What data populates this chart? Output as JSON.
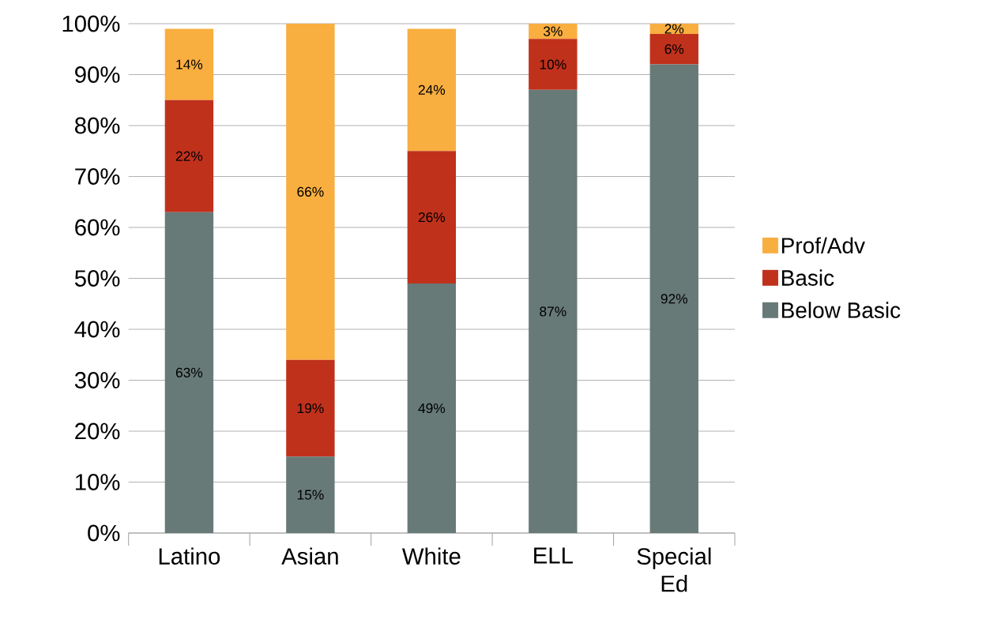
{
  "chart_data": {
    "type": "bar",
    "stacked": true,
    "categories": [
      "Latino",
      "Asian",
      "White",
      "ELL",
      "Special Ed"
    ],
    "series": [
      {
        "name": "Below Basic",
        "color": "#677a77",
        "values": [
          63,
          15,
          49,
          87,
          92
        ],
        "value_labels": [
          "63%",
          "15%",
          "49%",
          "87%",
          "92%"
        ]
      },
      {
        "name": "Basic",
        "color": "#c0311c",
        "values": [
          22,
          19,
          26,
          10,
          6
        ],
        "value_labels": [
          "22%",
          "19%",
          "26%",
          "10%",
          "6%"
        ]
      },
      {
        "name": "Prof/Adv",
        "color": "#f9ae40",
        "values": [
          14,
          66,
          24,
          3,
          2
        ],
        "value_labels": [
          "14%",
          "66%",
          "24%",
          "3%",
          "2%"
        ]
      }
    ],
    "ylim": [
      0,
      100
    ],
    "yticks": [
      {
        "value": 0,
        "label": "0%"
      },
      {
        "value": 10,
        "label": "10%"
      },
      {
        "value": 20,
        "label": "20%"
      },
      {
        "value": 30,
        "label": "30%"
      },
      {
        "value": 40,
        "label": "40%"
      },
      {
        "value": 50,
        "label": "50%"
      },
      {
        "value": 60,
        "label": "60%"
      },
      {
        "value": 70,
        "label": "70%"
      },
      {
        "value": 80,
        "label": "80%"
      },
      {
        "value": 90,
        "label": "90%"
      },
      {
        "value": 100,
        "label": "100%"
      }
    ],
    "grid": "y",
    "legend": "right"
  }
}
